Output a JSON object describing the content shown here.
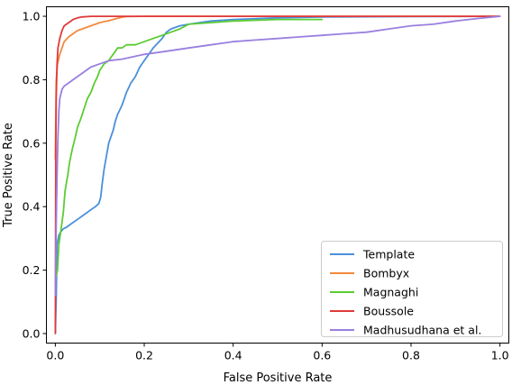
{
  "chart_data": {
    "type": "line",
    "title": "",
    "xlabel": "False Positive Rate",
    "ylabel": "True Positive Rate",
    "xlim": [
      -0.02,
      1.02
    ],
    "ylim": [
      -0.03,
      1.03
    ],
    "xticks": [
      0.0,
      0.2,
      0.4,
      0.6,
      0.8,
      1.0
    ],
    "xtick_labels": [
      "0.0",
      "0.2",
      "0.4",
      "0.6",
      "0.8",
      "1.0"
    ],
    "yticks": [
      0.0,
      0.2,
      0.4,
      0.6,
      0.8,
      1.0
    ],
    "ytick_labels": [
      "0.0",
      "0.2",
      "0.4",
      "0.6",
      "0.8",
      "1.0"
    ],
    "grid": false,
    "legend_position": "lower-right",
    "series": [
      {
        "name": "Template",
        "color": "#4a90d9",
        "points": [
          [
            0,
            0
          ],
          [
            0.002,
            0.12
          ],
          [
            0.004,
            0.28
          ],
          [
            0.008,
            0.31
          ],
          [
            0.012,
            0.32
          ],
          [
            0.018,
            0.33
          ],
          [
            0.025,
            0.335
          ],
          [
            0.035,
            0.345
          ],
          [
            0.05,
            0.36
          ],
          [
            0.065,
            0.375
          ],
          [
            0.08,
            0.39
          ],
          [
            0.09,
            0.4
          ],
          [
            0.098,
            0.41
          ],
          [
            0.102,
            0.43
          ],
          [
            0.106,
            0.48
          ],
          [
            0.11,
            0.52
          ],
          [
            0.115,
            0.56
          ],
          [
            0.12,
            0.6
          ],
          [
            0.125,
            0.62
          ],
          [
            0.13,
            0.64
          ],
          [
            0.135,
            0.67
          ],
          [
            0.14,
            0.69
          ],
          [
            0.15,
            0.72
          ],
          [
            0.16,
            0.76
          ],
          [
            0.17,
            0.79
          ],
          [
            0.18,
            0.81
          ],
          [
            0.19,
            0.84
          ],
          [
            0.2,
            0.86
          ],
          [
            0.21,
            0.88
          ],
          [
            0.22,
            0.9
          ],
          [
            0.23,
            0.915
          ],
          [
            0.24,
            0.93
          ],
          [
            0.25,
            0.95
          ],
          [
            0.26,
            0.96
          ],
          [
            0.28,
            0.97
          ],
          [
            0.3,
            0.975
          ],
          [
            0.35,
            0.985
          ],
          [
            0.4,
            0.99
          ],
          [
            0.5,
            0.995
          ],
          [
            0.6,
            0.998
          ],
          [
            0.8,
            0.999
          ],
          [
            1.0,
            1.0
          ]
        ]
      },
      {
        "name": "Bombyx",
        "color": "#f28a3c",
        "points": [
          [
            0,
            0.55
          ],
          [
            0.002,
            0.8
          ],
          [
            0.005,
            0.85
          ],
          [
            0.01,
            0.88
          ],
          [
            0.015,
            0.9
          ],
          [
            0.02,
            0.92
          ],
          [
            0.03,
            0.935
          ],
          [
            0.04,
            0.945
          ],
          [
            0.05,
            0.955
          ],
          [
            0.06,
            0.96
          ],
          [
            0.07,
            0.965
          ],
          [
            0.08,
            0.97
          ],
          [
            0.09,
            0.975
          ],
          [
            0.1,
            0.98
          ],
          [
            0.11,
            0.983
          ],
          [
            0.12,
            0.986
          ],
          [
            0.13,
            0.99
          ],
          [
            0.14,
            0.994
          ],
          [
            0.15,
            0.997
          ],
          [
            0.16,
            0.999
          ],
          [
            0.2,
            1.0
          ],
          [
            1.0,
            1.0
          ]
        ]
      },
      {
        "name": "Magnaghi",
        "color": "#5ccc33",
        "points": [
          [
            0,
            0.17
          ],
          [
            0.005,
            0.2
          ],
          [
            0.008,
            0.28
          ],
          [
            0.012,
            0.32
          ],
          [
            0.018,
            0.38
          ],
          [
            0.022,
            0.45
          ],
          [
            0.028,
            0.5
          ],
          [
            0.032,
            0.54
          ],
          [
            0.038,
            0.58
          ],
          [
            0.045,
            0.62
          ],
          [
            0.05,
            0.65
          ],
          [
            0.058,
            0.68
          ],
          [
            0.065,
            0.71
          ],
          [
            0.072,
            0.74
          ],
          [
            0.08,
            0.76
          ],
          [
            0.088,
            0.79
          ],
          [
            0.095,
            0.81
          ],
          [
            0.1,
            0.83
          ],
          [
            0.105,
            0.84
          ],
          [
            0.11,
            0.85
          ],
          [
            0.12,
            0.86
          ],
          [
            0.125,
            0.87
          ],
          [
            0.13,
            0.88
          ],
          [
            0.135,
            0.89
          ],
          [
            0.14,
            0.9
          ],
          [
            0.15,
            0.9
          ],
          [
            0.16,
            0.91
          ],
          [
            0.18,
            0.91
          ],
          [
            0.2,
            0.92
          ],
          [
            0.22,
            0.93
          ],
          [
            0.24,
            0.94
          ],
          [
            0.26,
            0.95
          ],
          [
            0.28,
            0.96
          ],
          [
            0.3,
            0.975
          ],
          [
            0.35,
            0.98
          ],
          [
            0.4,
            0.985
          ],
          [
            0.5,
            0.99
          ],
          [
            0.6,
            0.99
          ]
        ]
      },
      {
        "name": "Boussole",
        "color": "#e03a3a",
        "points": [
          [
            0,
            0
          ],
          [
            0.001,
            0.6
          ],
          [
            0.002,
            0.75
          ],
          [
            0.004,
            0.85
          ],
          [
            0.006,
            0.9
          ],
          [
            0.01,
            0.93
          ],
          [
            0.015,
            0.955
          ],
          [
            0.02,
            0.97
          ],
          [
            0.03,
            0.98
          ],
          [
            0.04,
            0.99
          ],
          [
            0.05,
            0.995
          ],
          [
            0.06,
            0.998
          ],
          [
            0.08,
            1.0
          ],
          [
            1.0,
            1.0
          ]
        ]
      },
      {
        "name": "Madhusudhana et al.",
        "color": "#9a7fe0",
        "points": [
          [
            0,
            0.12
          ],
          [
            0.002,
            0.35
          ],
          [
            0.004,
            0.5
          ],
          [
            0.006,
            0.62
          ],
          [
            0.008,
            0.7
          ],
          [
            0.01,
            0.74
          ],
          [
            0.015,
            0.77
          ],
          [
            0.02,
            0.78
          ],
          [
            0.03,
            0.79
          ],
          [
            0.04,
            0.8
          ],
          [
            0.05,
            0.81
          ],
          [
            0.06,
            0.82
          ],
          [
            0.07,
            0.83
          ],
          [
            0.08,
            0.84
          ],
          [
            0.1,
            0.85
          ],
          [
            0.12,
            0.86
          ],
          [
            0.15,
            0.865
          ],
          [
            0.2,
            0.88
          ],
          [
            0.25,
            0.89
          ],
          [
            0.3,
            0.9
          ],
          [
            0.35,
            0.91
          ],
          [
            0.4,
            0.92
          ],
          [
            0.45,
            0.925
          ],
          [
            0.5,
            0.93
          ],
          [
            0.55,
            0.935
          ],
          [
            0.6,
            0.94
          ],
          [
            0.65,
            0.945
          ],
          [
            0.7,
            0.95
          ],
          [
            0.75,
            0.96
          ],
          [
            0.8,
            0.97
          ],
          [
            0.85,
            0.975
          ],
          [
            0.9,
            0.985
          ],
          [
            0.95,
            0.993
          ],
          [
            1.0,
            1.0
          ]
        ]
      }
    ]
  }
}
